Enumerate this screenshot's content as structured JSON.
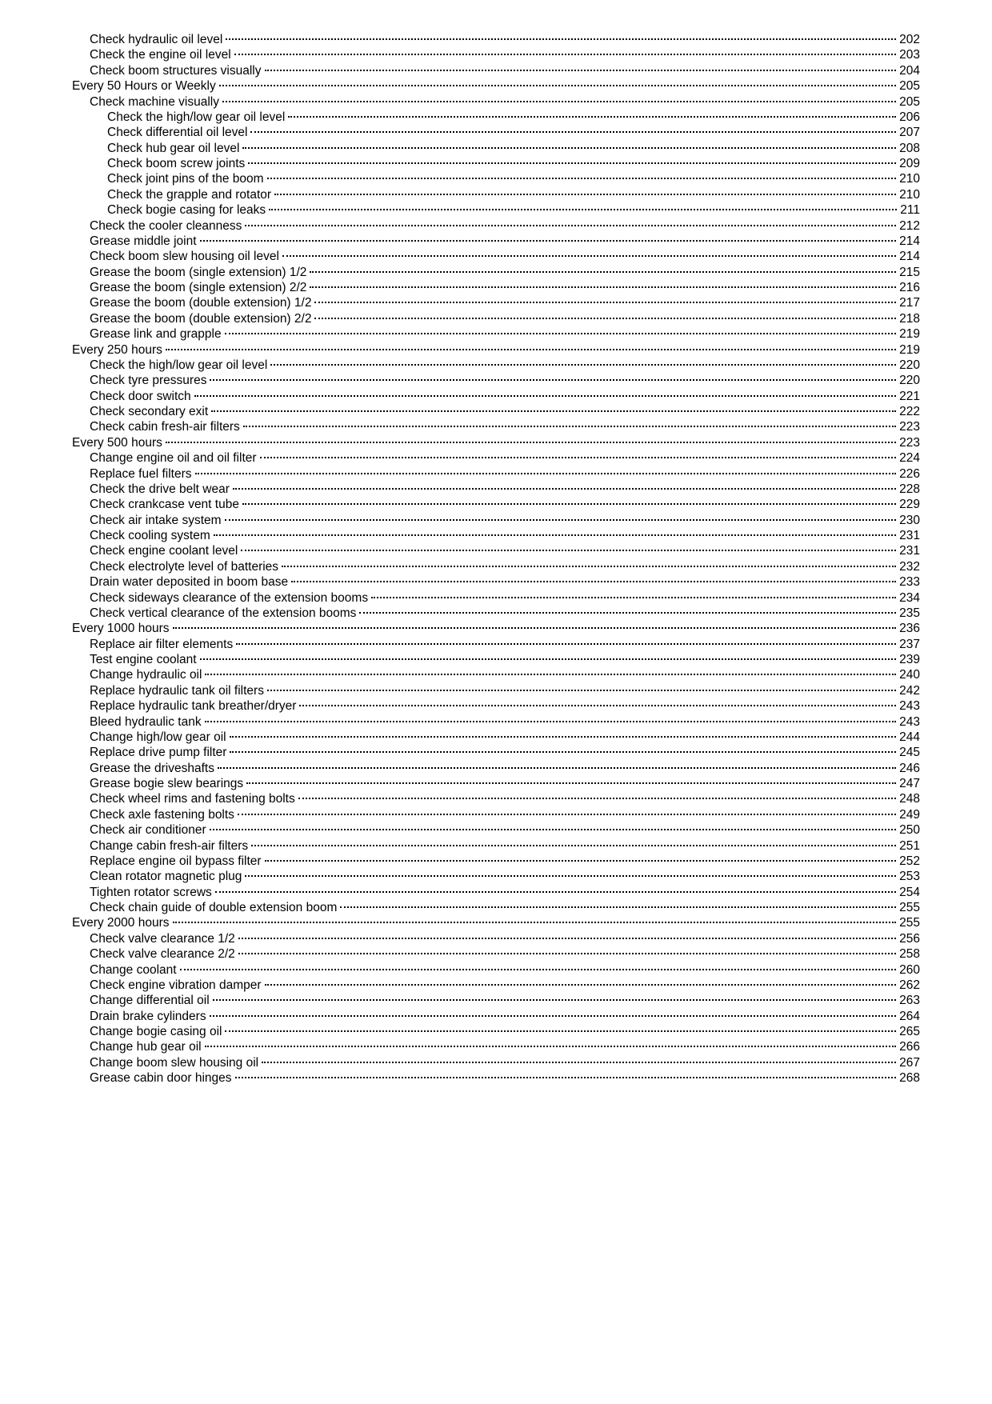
{
  "entries": [
    {
      "label": "Check hydraulic oil level",
      "page": "202",
      "indent": 1
    },
    {
      "label": "Check the engine oil level",
      "page": "203",
      "indent": 1
    },
    {
      "label": "Check boom structures visually",
      "page": "204",
      "indent": 1
    },
    {
      "label": "Every 50 Hours or Weekly",
      "page": "205",
      "indent": 0
    },
    {
      "label": "Check machine visually",
      "page": "205",
      "indent": 1
    },
    {
      "label": "Check the high/low gear oil level",
      "page": "206",
      "indent": 2
    },
    {
      "label": "Check differential oil level",
      "page": "207",
      "indent": 2
    },
    {
      "label": "Check hub gear oil level",
      "page": "208",
      "indent": 2
    },
    {
      "label": "Check boom screw joints",
      "page": "209",
      "indent": 2
    },
    {
      "label": "Check joint pins of the boom",
      "page": "210",
      "indent": 2
    },
    {
      "label": "Check the grapple and rotator",
      "page": "210",
      "indent": 2
    },
    {
      "label": "Check bogie casing for leaks",
      "page": "211",
      "indent": 2
    },
    {
      "label": "Check the cooler cleanness",
      "page": "212",
      "indent": 1
    },
    {
      "label": "Grease middle joint",
      "page": "214",
      "indent": 1
    },
    {
      "label": "Check boom slew housing oil level",
      "page": "214",
      "indent": 1
    },
    {
      "label": "Grease the boom (single extension) 1/2",
      "page": "215",
      "indent": 1
    },
    {
      "label": "Grease the boom (single extension) 2/2",
      "page": "216",
      "indent": 1
    },
    {
      "label": "Grease the boom (double extension) 1/2",
      "page": "217",
      "indent": 1
    },
    {
      "label": "Grease the boom (double extension) 2/2",
      "page": "218",
      "indent": 1
    },
    {
      "label": "Grease link and grapple",
      "page": "219",
      "indent": 1
    },
    {
      "label": "Every 250 hours",
      "page": "219",
      "indent": 0
    },
    {
      "label": "Check the high/low gear oil level",
      "page": "220",
      "indent": 1
    },
    {
      "label": "Check tyre pressures",
      "page": "220",
      "indent": 1
    },
    {
      "label": "Check door switch",
      "page": "221",
      "indent": 1
    },
    {
      "label": "Check secondary exit",
      "page": "222",
      "indent": 1
    },
    {
      "label": "Check cabin fresh-air filters",
      "page": "223",
      "indent": 1
    },
    {
      "label": "Every 500 hours",
      "page": "223",
      "indent": 0
    },
    {
      "label": "Change engine oil and oil filter",
      "page": "224",
      "indent": 1
    },
    {
      "label": "Replace fuel filters",
      "page": "226",
      "indent": 1
    },
    {
      "label": "Check the drive belt wear",
      "page": "228",
      "indent": 1
    },
    {
      "label": "Check crankcase vent tube",
      "page": "229",
      "indent": 1
    },
    {
      "label": "Check air intake system",
      "page": "230",
      "indent": 1
    },
    {
      "label": "Check cooling system",
      "page": "231",
      "indent": 1
    },
    {
      "label": "Check engine coolant level",
      "page": "231",
      "indent": 1
    },
    {
      "label": "Check electrolyte level of batteries",
      "page": "232",
      "indent": 1
    },
    {
      "label": "Drain water deposited in boom base",
      "page": "233",
      "indent": 1
    },
    {
      "label": "Check sideways clearance of the extension booms",
      "page": "234",
      "indent": 1
    },
    {
      "label": "Check vertical clearance of the extension booms",
      "page": "235",
      "indent": 1
    },
    {
      "label": "Every 1000 hours",
      "page": "236",
      "indent": 0
    },
    {
      "label": "Replace air filter elements",
      "page": "237",
      "indent": 1
    },
    {
      "label": "Test engine coolant",
      "page": "239",
      "indent": 1
    },
    {
      "label": "Change hydraulic oil",
      "page": "240",
      "indent": 1
    },
    {
      "label": "Replace hydraulic tank oil filters",
      "page": "242",
      "indent": 1
    },
    {
      "label": "Replace hydraulic tank breather/dryer",
      "page": "243",
      "indent": 1
    },
    {
      "label": "Bleed hydraulic tank",
      "page": "243",
      "indent": 1
    },
    {
      "label": "Change high/low gear oil",
      "page": "244",
      "indent": 1
    },
    {
      "label": "Replace drive pump filter",
      "page": "245",
      "indent": 1
    },
    {
      "label": "Grease the driveshafts",
      "page": "246",
      "indent": 1
    },
    {
      "label": "Grease bogie slew bearings",
      "page": "247",
      "indent": 1
    },
    {
      "label": "Check wheel rims and fastening bolts",
      "page": "248",
      "indent": 1
    },
    {
      "label": "Check axle fastening bolts",
      "page": "249",
      "indent": 1
    },
    {
      "label": "Check air conditioner",
      "page": "250",
      "indent": 1
    },
    {
      "label": "Change cabin fresh-air filters",
      "page": "251",
      "indent": 1
    },
    {
      "label": "Replace engine oil bypass filter",
      "page": "252",
      "indent": 1
    },
    {
      "label": "Clean rotator magnetic plug",
      "page": "253",
      "indent": 1
    },
    {
      "label": "Tighten rotator screws",
      "page": "254",
      "indent": 1
    },
    {
      "label": "Check chain guide of double extension boom",
      "page": "255",
      "indent": 1
    },
    {
      "label": "Every 2000 hours",
      "page": "255",
      "indent": 0
    },
    {
      "label": "Check valve clearance 1/2",
      "page": "256",
      "indent": 1
    },
    {
      "label": "Check valve clearance 2/2",
      "page": "258",
      "indent": 1
    },
    {
      "label": "Change coolant",
      "page": "260",
      "indent": 1
    },
    {
      "label": "Check engine vibration damper",
      "page": "262",
      "indent": 1
    },
    {
      "label": "Change differential oil",
      "page": "263",
      "indent": 1
    },
    {
      "label": "Drain brake cylinders",
      "page": "264",
      "indent": 1
    },
    {
      "label": "Change bogie casing oil",
      "page": "265",
      "indent": 1
    },
    {
      "label": "Change hub gear oil",
      "page": "266",
      "indent": 1
    },
    {
      "label": "Change boom slew housing oil",
      "page": "267",
      "indent": 1
    },
    {
      "label": "Grease cabin door hinges",
      "page": "268",
      "indent": 1
    }
  ]
}
